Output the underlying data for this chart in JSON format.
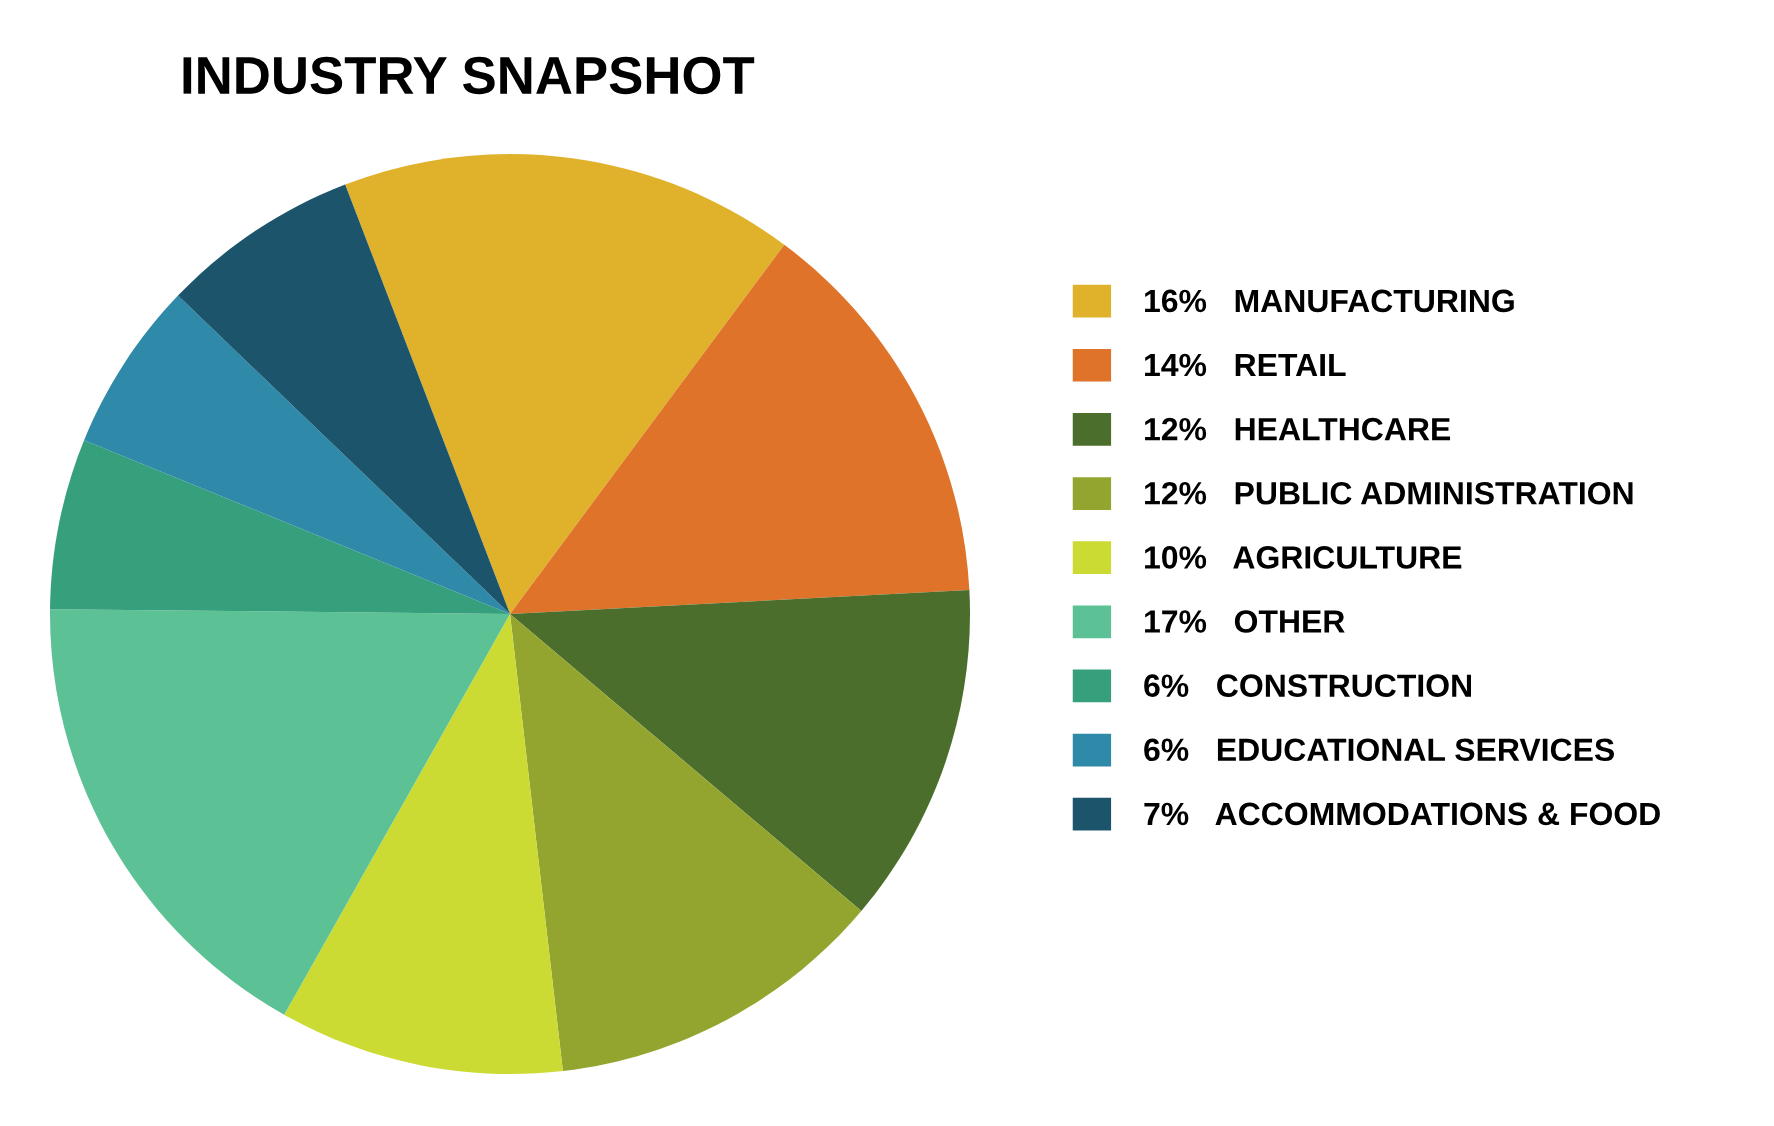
{
  "chart_data": {
    "type": "pie",
    "title": "INDUSTRY SNAPSHOT",
    "categories": [
      "MANUFACTURING",
      "RETAIL",
      "HEALTHCARE",
      "PUBLIC ADMINISTRATION",
      "AGRICULTURE",
      "OTHER",
      "CONSTRUCTION",
      "EDUCATIONAL SERVICES",
      "ACCOMMODATIONS & FOOD"
    ],
    "values": [
      16,
      14,
      12,
      12,
      10,
      17,
      6,
      6,
      7
    ],
    "value_labels": [
      "16%",
      "14%",
      "12%",
      "12%",
      "10%",
      "17%",
      "6%",
      "6%",
      "7%"
    ],
    "colors": [
      "#e0b12a",
      "#e0732a",
      "#4b6e2c",
      "#93a52f",
      "#cbdb33",
      "#5dc196",
      "#36a07c",
      "#2e8aa8",
      "#1b546b"
    ],
    "legend": "right"
  }
}
